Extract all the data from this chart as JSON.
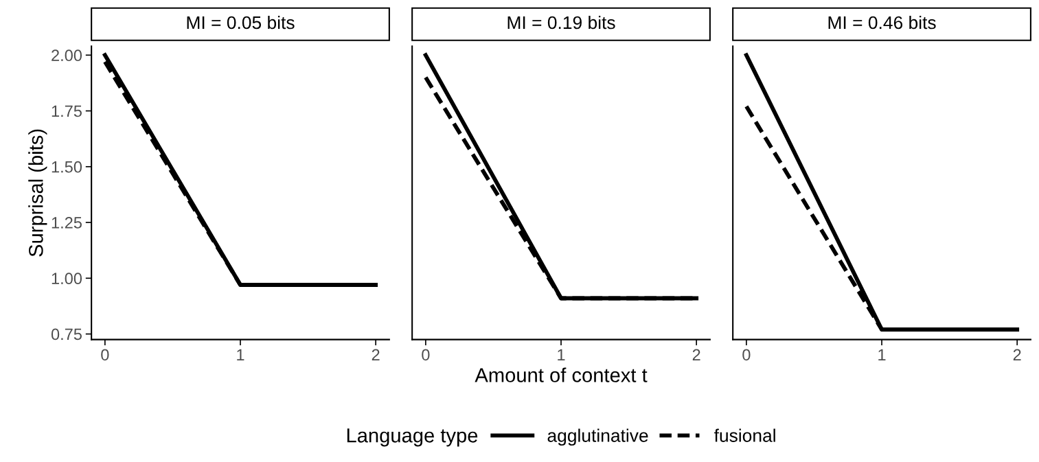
{
  "chart_data": [
    {
      "type": "line",
      "title": "MI = 0.05 bits",
      "ylabel": "Surprisal (bits)",
      "x": [
        0,
        1,
        2
      ],
      "xlim": [
        -0.1,
        2.1
      ],
      "xticks": [
        0,
        1,
        2
      ],
      "ylim": [
        0.725,
        2.04
      ],
      "yticks": [
        {
          "value": 0.75,
          "label": "0.75"
        },
        {
          "value": 1.0,
          "label": "1.00"
        },
        {
          "value": 1.25,
          "label": "1.25"
        },
        {
          "value": 1.5,
          "label": "1.50"
        },
        {
          "value": 1.75,
          "label": "1.75"
        },
        {
          "value": 2.0,
          "label": "2.00"
        }
      ],
      "grid": false,
      "legend": false,
      "series": [
        {
          "color": "#000000",
          "line_style": "solid",
          "values": [
            2.0,
            0.97,
            0.97
          ]
        },
        {
          "color": "#000000",
          "line_style": "dashed",
          "values": [
            1.97,
            0.97,
            0.97
          ]
        }
      ]
    },
    {
      "type": "line",
      "title": "MI = 0.19 bits",
      "xlabel": "Amount of context t",
      "legend_title": "Language type",
      "x": [
        0,
        1,
        2
      ],
      "xlim": [
        -0.1,
        2.1
      ],
      "xticks": [
        0,
        1,
        2
      ],
      "ylim": [
        0.725,
        2.04
      ],
      "tick_labels": "x",
      "grid": false,
      "legend": "bottom",
      "series": [
        {
          "name": "agglutinative",
          "color": "#000000",
          "line_style": "solid",
          "values": [
            2.0,
            0.91,
            0.91
          ]
        },
        {
          "name": "fusional",
          "color": "#000000",
          "line_style": "dashed",
          "values": [
            1.9,
            0.91,
            0.91
          ]
        }
      ]
    },
    {
      "type": "line",
      "title": "MI = 0.46 bits",
      "x": [
        0,
        1,
        2
      ],
      "xlim": [
        -0.1,
        2.1
      ],
      "xticks": [
        0,
        1,
        2
      ],
      "ylim": [
        0.725,
        2.04
      ],
      "tick_labels": "x",
      "grid": false,
      "legend": false,
      "series": [
        {
          "color": "#000000",
          "line_style": "solid",
          "values": [
            2.0,
            0.77,
            0.77
          ]
        },
        {
          "color": "#000000",
          "line_style": "dashed",
          "values": [
            1.77,
            0.77,
            0.77
          ]
        }
      ]
    }
  ]
}
